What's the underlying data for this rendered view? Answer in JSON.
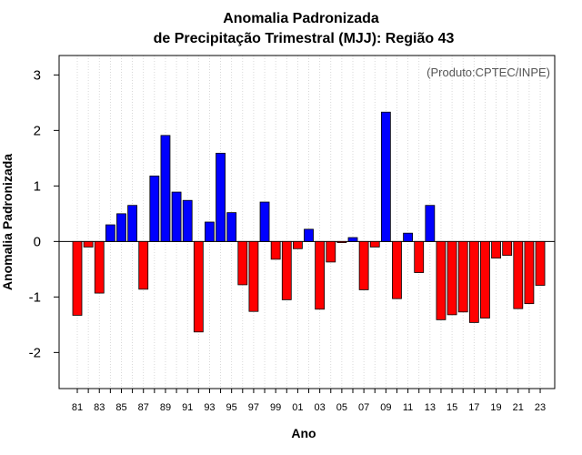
{
  "chart_data": {
    "type": "bar",
    "title": "Anomalia Padronizada",
    "subtitle": "de Precipitação Trimestral (MJJ): Região 43",
    "xlabel": "Ano",
    "ylabel": "Anomalia Padronizada",
    "credit": "(Produto:CPTEC/INPE)",
    "ylim": [
      -2.65,
      3.35
    ],
    "yticks": [
      -2,
      -1,
      0,
      1,
      2,
      3
    ],
    "positive_color": "#0000ff",
    "negative_color": "#ff0000",
    "x_tick_labels": [
      "81",
      "83",
      "85",
      "87",
      "89",
      "91",
      "93",
      "95",
      "97",
      "99",
      "01",
      "03",
      "05",
      "07",
      "09",
      "11",
      "13",
      "15",
      "17",
      "19",
      "21",
      "23"
    ],
    "categories": [
      "1981",
      "1982",
      "1983",
      "1984",
      "1985",
      "1986",
      "1987",
      "1988",
      "1989",
      "1990",
      "1991",
      "1992",
      "1993",
      "1994",
      "1995",
      "1996",
      "1997",
      "1998",
      "1999",
      "2000",
      "2001",
      "2002",
      "2003",
      "2004",
      "2005",
      "2006",
      "2007",
      "2008",
      "2009",
      "2010",
      "2011",
      "2012",
      "2013",
      "2014",
      "2015",
      "2016",
      "2017",
      "2018",
      "2019",
      "2020",
      "2021",
      "2022",
      "2023"
    ],
    "values": [
      -1.33,
      -0.1,
      -0.93,
      0.3,
      0.5,
      0.65,
      -0.86,
      1.18,
      1.91,
      0.89,
      0.74,
      -1.63,
      0.35,
      1.59,
      0.52,
      -0.78,
      -1.26,
      0.71,
      -0.32,
      -1.05,
      -0.13,
      0.22,
      -1.22,
      -0.37,
      -0.02,
      0.07,
      -0.87,
      -0.1,
      2.33,
      -1.03,
      0.15,
      -0.56,
      0.65,
      -1.41,
      -1.32,
      -1.27,
      -1.46,
      -1.38,
      -0.3,
      -0.25,
      -1.21,
      -1.12,
      -0.79
    ]
  }
}
